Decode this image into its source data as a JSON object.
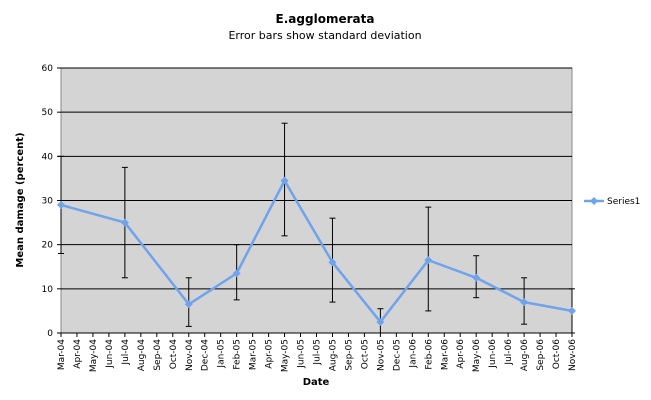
{
  "chart_data": {
    "type": "line",
    "title": "E.agglomerata",
    "subtitle": "Error bars show standard deviation",
    "xlabel": "Date",
    "ylabel": "Mean damage (percent)",
    "ylim": [
      0,
      60
    ],
    "yticks": [
      0,
      10,
      20,
      30,
      40,
      50,
      60
    ],
    "grid": "horizontal",
    "legend_position": "right",
    "colors": {
      "series": "#6fa3ec",
      "marker": "#6fa3ec",
      "plot_background": "#d4d4d4",
      "gridline": "#000000",
      "error_bar": "#000000"
    },
    "x": [
      "Mar-04",
      "Apr-04",
      "May-04",
      "Jun-04",
      "Jul-04",
      "Aug-04",
      "Sep-04",
      "Oct-04",
      "Nov-04",
      "Dec-04",
      "Jan-05",
      "Feb-05",
      "Mar-05",
      "Apr-05",
      "May-05",
      "Jun-05",
      "Jul-05",
      "Aug-05",
      "Sep-05",
      "Oct-05",
      "Nov-05",
      "Dec-05",
      "Jan-06",
      "Feb-06",
      "Mar-06",
      "Apr-06",
      "May-06",
      "Jun-06",
      "Jul-06",
      "Aug-06",
      "Sep-06",
      "Oct-06",
      "Nov-06"
    ],
    "series": [
      {
        "name": "Series1",
        "points": [
          {
            "x": "Mar-04",
            "y": 29,
            "low": 18,
            "high": 40
          },
          {
            "x": "Jul-04",
            "y": 25,
            "low": 12.5,
            "high": 37.5
          },
          {
            "x": "Nov-04",
            "y": 6.5,
            "low": 1.5,
            "high": 12.5
          },
          {
            "x": "Feb-05",
            "y": 13.5,
            "low": 7.5,
            "high": 20
          },
          {
            "x": "May-05",
            "y": 34.5,
            "low": 22,
            "high": 47.5
          },
          {
            "x": "Aug-05",
            "y": 16,
            "low": 7,
            "high": 26
          },
          {
            "x": "Nov-05",
            "y": 2.5,
            "low": -0.5,
            "high": 5.5
          },
          {
            "x": "Feb-06",
            "y": 16.5,
            "low": 5,
            "high": 28.5
          },
          {
            "x": "May-06",
            "y": 12.5,
            "low": 8,
            "high": 17.5
          },
          {
            "x": "Aug-06",
            "y": 7,
            "low": 2,
            "high": 12.5
          },
          {
            "x": "Nov-06",
            "y": 5,
            "low": 0,
            "high": 10
          }
        ]
      }
    ]
  }
}
